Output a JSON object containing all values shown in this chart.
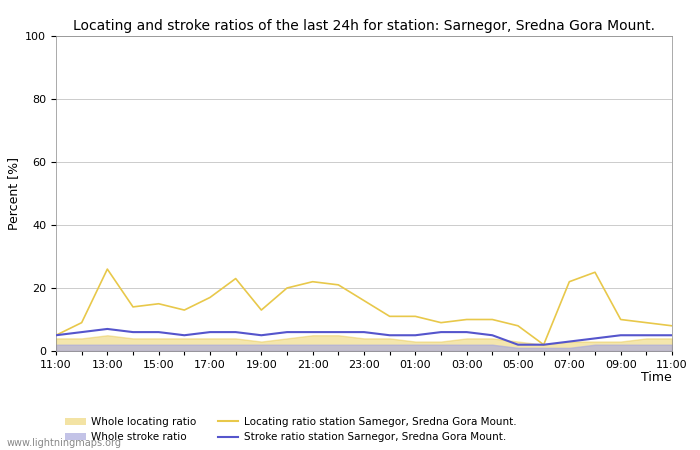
{
  "title": "Locating and stroke ratios of the last 24h for station: Sarnegor, Sredna Gora Mount.",
  "ylabel": "Percent [%]",
  "xlabel": "Time",
  "ylim": [
    0,
    100
  ],
  "yticks": [
    0,
    20,
    40,
    60,
    80,
    100
  ],
  "x_labels": [
    "11:00",
    "",
    "13:00",
    "",
    "15:00",
    "",
    "17:00",
    "",
    "19:00",
    "",
    "21:00",
    "",
    "23:00",
    "",
    "01:00",
    "",
    "03:00",
    "",
    "05:00",
    "",
    "07:00",
    "",
    "09:00",
    "",
    "11:00"
  ],
  "locating_ratio_station": [
    5,
    9,
    26,
    14,
    15,
    13,
    17,
    23,
    13,
    20,
    22,
    21,
    16,
    11,
    11,
    9,
    10,
    10,
    8,
    2,
    22,
    25,
    10,
    9,
    8
  ],
  "stroke_ratio_station": [
    5,
    6,
    7,
    6,
    6,
    5,
    6,
    6,
    5,
    6,
    6,
    6,
    6,
    5,
    5,
    6,
    6,
    5,
    2,
    2,
    3,
    4,
    5,
    5,
    5
  ],
  "whole_locating_ratio": [
    4,
    4,
    5,
    4,
    4,
    4,
    4,
    4,
    3,
    4,
    5,
    5,
    4,
    4,
    3,
    3,
    4,
    4,
    3,
    2,
    3,
    3,
    3,
    4,
    4
  ],
  "whole_stroke_ratio": [
    2,
    2,
    2,
    2,
    2,
    2,
    2,
    2,
    2,
    2,
    2,
    2,
    2,
    2,
    2,
    2,
    2,
    2,
    1,
    1,
    1,
    2,
    2,
    2,
    2
  ],
  "locating_color": "#e8c84a",
  "stroke_color": "#5555cc",
  "whole_locating_fill": "#e8c84a",
  "whole_stroke_fill": "#aaaadd",
  "background_color": "#ffffff",
  "grid_color": "#cccccc",
  "watermark": "www.lightningmaps.org",
  "title_fontsize": 10,
  "axis_fontsize": 9,
  "tick_fontsize": 8,
  "legend_items": [
    {
      "type": "patch",
      "color": "#e8c84a",
      "alpha": 0.5,
      "label": "Whole locating ratio"
    },
    {
      "type": "patch",
      "color": "#aaaadd",
      "alpha": 0.7,
      "label": "Whole stroke ratio"
    },
    {
      "type": "line",
      "color": "#e8c84a",
      "label": "Locating ratio station Samegor, Sredna Gora Mount."
    },
    {
      "type": "line",
      "color": "#5555cc",
      "label": "Stroke ratio station Sarnegor, Sredna Gora Mount."
    }
  ]
}
